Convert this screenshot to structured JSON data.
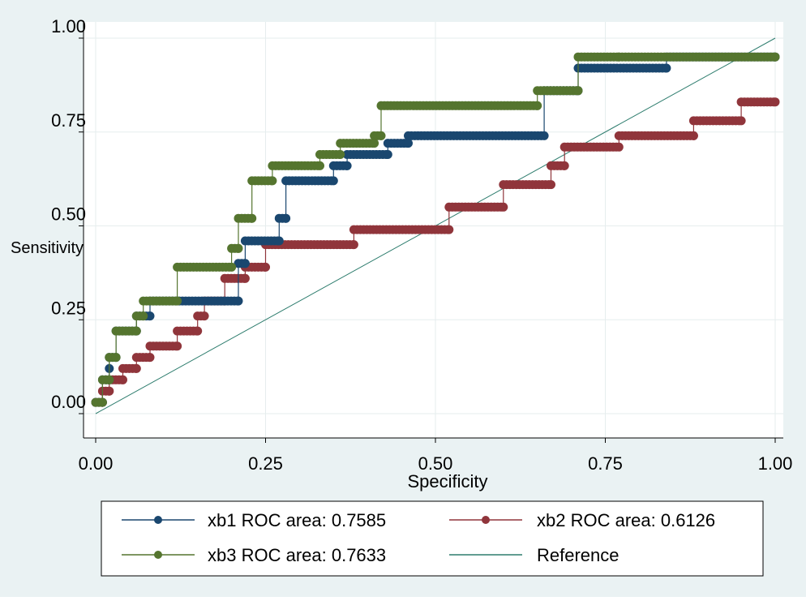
{
  "chart_data": {
    "type": "line",
    "title": "",
    "xlabel": "Specificity",
    "ylabel": "Sensitivity",
    "xlim": [
      0,
      1
    ],
    "ylim": [
      0,
      1
    ],
    "x_ticks": [
      "0.00",
      "0.25",
      "0.50",
      "0.75",
      "1.00"
    ],
    "y_ticks": [
      "0.00",
      "0.25",
      "0.50",
      "0.75",
      "1.00"
    ],
    "grid": true,
    "legend_position": "bottom",
    "colors": {
      "background": "#eaf2f3",
      "plot": "#ffffff",
      "xb1": "#1a476f",
      "xb2": "#90353b",
      "xb3": "#55752f",
      "reference": "#2e7d6e"
    },
    "series": [
      {
        "name": "xb1 ROC area: 0.7585",
        "key": "xb1",
        "x": [
          0.0,
          0.01,
          0.01,
          0.02,
          0.02,
          0.02,
          0.03,
          0.03,
          0.06,
          0.06,
          0.08,
          0.08,
          0.21,
          0.21,
          0.22,
          0.22,
          0.27,
          0.27,
          0.28,
          0.28,
          0.35,
          0.35,
          0.37,
          0.37,
          0.43,
          0.43,
          0.46,
          0.46,
          0.66,
          0.66,
          0.71,
          0.71,
          0.84,
          0.84,
          1.0
        ],
        "y": [
          0.03,
          0.03,
          0.09,
          0.09,
          0.12,
          0.15,
          0.15,
          0.22,
          0.22,
          0.26,
          0.26,
          0.3,
          0.3,
          0.4,
          0.4,
          0.46,
          0.46,
          0.52,
          0.52,
          0.62,
          0.62,
          0.66,
          0.66,
          0.69,
          0.69,
          0.72,
          0.72,
          0.74,
          0.74,
          0.86,
          0.86,
          0.92,
          0.92,
          0.95,
          0.95
        ]
      },
      {
        "name": "xb2 ROC area: 0.6126",
        "key": "xb2",
        "x": [
          0.0,
          0.01,
          0.01,
          0.02,
          0.02,
          0.04,
          0.04,
          0.06,
          0.06,
          0.08,
          0.08,
          0.12,
          0.12,
          0.15,
          0.15,
          0.16,
          0.16,
          0.19,
          0.19,
          0.22,
          0.22,
          0.25,
          0.25,
          0.38,
          0.38,
          0.52,
          0.52,
          0.6,
          0.6,
          0.67,
          0.67,
          0.69,
          0.69,
          0.77,
          0.77,
          0.88,
          0.88,
          0.95,
          0.95,
          1.0
        ],
        "y": [
          0.03,
          0.03,
          0.06,
          0.06,
          0.09,
          0.09,
          0.12,
          0.12,
          0.15,
          0.15,
          0.18,
          0.18,
          0.22,
          0.22,
          0.26,
          0.26,
          0.3,
          0.3,
          0.36,
          0.36,
          0.39,
          0.39,
          0.45,
          0.45,
          0.49,
          0.49,
          0.55,
          0.55,
          0.61,
          0.61,
          0.66,
          0.66,
          0.71,
          0.71,
          0.74,
          0.74,
          0.78,
          0.78,
          0.83,
          0.83
        ]
      },
      {
        "name": "xb3 ROC area: 0.7633",
        "key": "xb3",
        "x": [
          0.0,
          0.01,
          0.01,
          0.02,
          0.02,
          0.03,
          0.03,
          0.06,
          0.06,
          0.07,
          0.07,
          0.12,
          0.12,
          0.2,
          0.2,
          0.21,
          0.21,
          0.23,
          0.23,
          0.26,
          0.26,
          0.33,
          0.33,
          0.36,
          0.36,
          0.41,
          0.41,
          0.42,
          0.42,
          0.65,
          0.65,
          0.71,
          0.71,
          0.77,
          0.77,
          1.0
        ],
        "y": [
          0.03,
          0.03,
          0.09,
          0.09,
          0.15,
          0.15,
          0.22,
          0.22,
          0.26,
          0.26,
          0.3,
          0.3,
          0.39,
          0.39,
          0.44,
          0.44,
          0.52,
          0.52,
          0.62,
          0.62,
          0.66,
          0.66,
          0.69,
          0.69,
          0.72,
          0.72,
          0.74,
          0.74,
          0.82,
          0.82,
          0.86,
          0.86,
          0.95,
          0.95,
          0.95,
          0.95
        ]
      },
      {
        "name": "Reference",
        "key": "reference",
        "x": [
          0,
          1
        ],
        "y": [
          0,
          1
        ]
      }
    ]
  }
}
